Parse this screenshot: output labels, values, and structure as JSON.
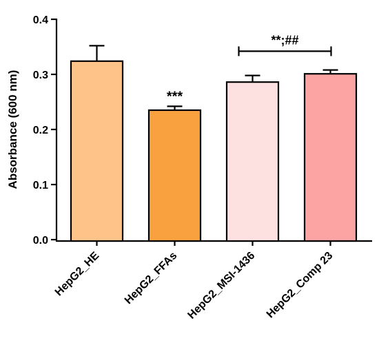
{
  "chart_data": {
    "type": "bar",
    "ylabel": "Absorbance (600 nm)",
    "ylim": [
      0,
      0.4
    ],
    "yticks": [
      "0.0",
      "0.1",
      "0.2",
      "0.3",
      "0.4"
    ],
    "categories": [
      "HepG2_HE",
      "HepG2_FFAs",
      "HepG2_MSI-1436",
      "HepG2_Comp 23"
    ],
    "values": [
      0.324,
      0.235,
      0.286,
      0.301
    ],
    "errors": [
      0.028,
      0.007,
      0.012,
      0.007
    ],
    "colors": [
      "#fdc389",
      "#f9a03f",
      "#fde0e0",
      "#fca3a3"
    ],
    "annotations": [
      {
        "bar": 1,
        "text": "***"
      }
    ],
    "bracket": {
      "from": 2,
      "to": 3,
      "y": 0.342,
      "text": "**;##"
    },
    "grid": false,
    "legend": "none"
  }
}
